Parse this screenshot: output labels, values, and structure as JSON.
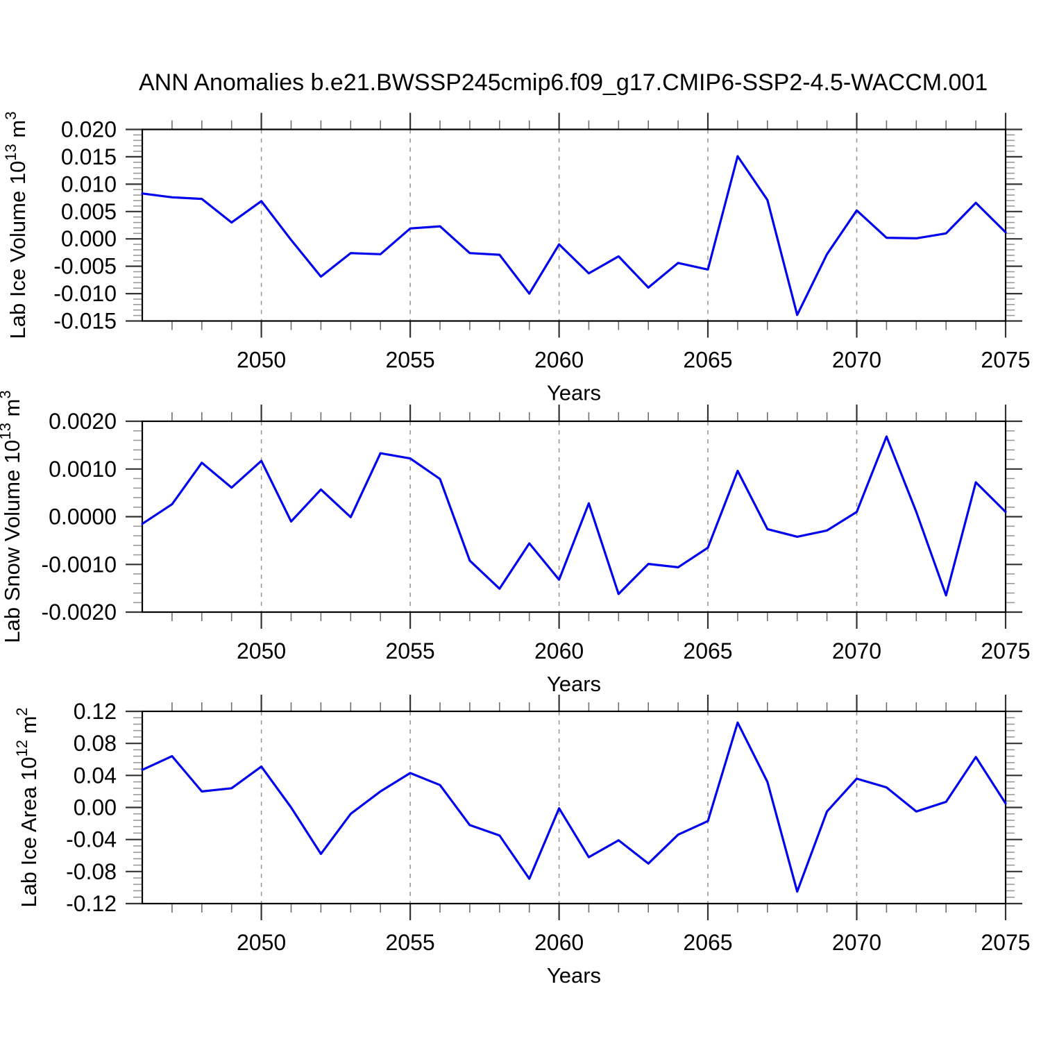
{
  "title": "ANN Anomalies b.e21.BWSSP245cmip6.f09_g17.CMIP6-SSP2-4.5-WACCM.001",
  "colors": {
    "line": "#0000ee",
    "axis": "#000000",
    "major_tick": "#333333",
    "minor_tick_x": "#6e6e6e",
    "minor_tick_y": "#9a9a9a",
    "grid": "#999999",
    "text": "#000000",
    "background": "#ffffff"
  },
  "x_axis": {
    "label": "Years",
    "range": [
      2046,
      2075
    ],
    "major_ticks": [
      2050,
      2055,
      2060,
      2065,
      2070,
      2075
    ],
    "minor_step": 1,
    "gridlines": [
      2050,
      2055,
      2060,
      2065,
      2070
    ]
  },
  "chart_data": [
    {
      "type": "line",
      "name": "lab-ice-volume",
      "ylabel_segments": [
        {
          "text": "Lab Ice Volume 10"
        },
        {
          "text": "13",
          "sup": true
        },
        {
          "text": " m"
        },
        {
          "text": "3",
          "sup": true
        }
      ],
      "xlabel": "Years",
      "ylim": [
        -0.015,
        0.02
      ],
      "ytick_step": 0.005,
      "yminor_step": 0.001,
      "ytick_decimals": 3,
      "grid": "x-dashed",
      "legend": "none",
      "x": [
        2046,
        2047,
        2048,
        2049,
        2050,
        2051,
        2052,
        2053,
        2054,
        2055,
        2056,
        2057,
        2058,
        2059,
        2060,
        2061,
        2062,
        2063,
        2064,
        2065,
        2066,
        2067,
        2068,
        2069,
        2070,
        2071,
        2072,
        2073,
        2074,
        2075
      ],
      "values": [
        0.0083,
        0.0076,
        0.0073,
        0.003,
        0.0069,
        -0.0002,
        -0.0069,
        -0.0026,
        -0.0028,
        0.0019,
        0.0023,
        -0.0026,
        -0.0029,
        -0.01,
        -0.001,
        -0.0063,
        -0.0032,
        -0.0089,
        -0.0044,
        -0.0056,
        0.0151,
        0.0071,
        -0.0139,
        -0.0028,
        0.0052,
        0.0002,
        0.0001,
        0.001,
        0.0066,
        0.0012
      ]
    },
    {
      "type": "line",
      "name": "lab-snow-volume",
      "ylabel_segments": [
        {
          "text": "Lab Snow Volume 10"
        },
        {
          "text": "13",
          "sup": true
        },
        {
          "text": " m"
        },
        {
          "text": "3",
          "sup": true
        }
      ],
      "xlabel": "Years",
      "ylim": [
        -0.002,
        0.002
      ],
      "ytick_step": 0.001,
      "yminor_step": 0.0002,
      "ytick_decimals": 4,
      "grid": "x-dashed",
      "legend": "none",
      "x": [
        2046,
        2047,
        2048,
        2049,
        2050,
        2051,
        2052,
        2053,
        2054,
        2055,
        2056,
        2057,
        2058,
        2059,
        2060,
        2061,
        2062,
        2063,
        2064,
        2065,
        2066,
        2067,
        2068,
        2069,
        2070,
        2071,
        2072,
        2073,
        2074,
        2075
      ],
      "values": [
        -0.00015,
        0.00026,
        0.00113,
        0.00061,
        0.00117,
        -0.0001,
        0.00057,
        -1e-05,
        0.00133,
        0.00122,
        0.00079,
        -0.00092,
        -0.00151,
        -0.00056,
        -0.00132,
        0.00028,
        -0.00162,
        -0.00099,
        -0.00106,
        -0.00065,
        0.00096,
        -0.00026,
        -0.00042,
        -0.00029,
        0.0001,
        0.00168,
        0.0001,
        -0.00165,
        0.00072,
        0.0001
      ]
    },
    {
      "type": "line",
      "name": "lab-ice-area",
      "ylabel_segments": [
        {
          "text": "Lab Ice Area 10"
        },
        {
          "text": "12",
          "sup": true
        },
        {
          "text": " m"
        },
        {
          "text": "2",
          "sup": true
        }
      ],
      "xlabel": "Years",
      "ylim": [
        -0.12,
        0.12
      ],
      "ytick_step": 0.04,
      "yminor_step": 0.008,
      "ytick_decimals": 2,
      "grid": "x-dashed",
      "legend": "none",
      "x": [
        2046,
        2047,
        2048,
        2049,
        2050,
        2051,
        2052,
        2053,
        2054,
        2055,
        2056,
        2057,
        2058,
        2059,
        2060,
        2061,
        2062,
        2063,
        2064,
        2065,
        2066,
        2067,
        2068,
        2069,
        2070,
        2071,
        2072,
        2073,
        2074,
        2075
      ],
      "values": [
        0.047,
        0.064,
        0.02,
        0.024,
        0.051,
        0.0,
        -0.058,
        -0.008,
        0.02,
        0.043,
        0.028,
        -0.022,
        -0.035,
        -0.089,
        -0.001,
        -0.062,
        -0.041,
        -0.07,
        -0.034,
        -0.017,
        0.106,
        0.032,
        -0.105,
        -0.005,
        0.036,
        0.025,
        -0.005,
        0.007,
        0.063,
        0.005
      ]
    }
  ]
}
